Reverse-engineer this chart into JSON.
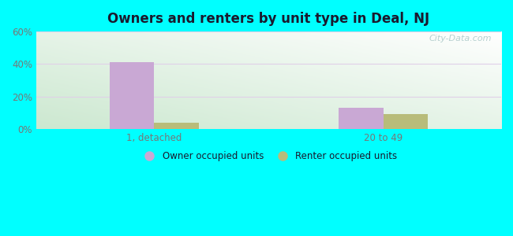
{
  "title": "Owners and renters by unit type in Deal, NJ",
  "categories": [
    "1, detached",
    "20 to 49"
  ],
  "owner_values": [
    41,
    13
  ],
  "renter_values": [
    4,
    9
  ],
  "owner_color": "#c9a8d4",
  "renter_color": "#b8bc7a",
  "ylim": [
    0,
    60
  ],
  "yticks": [
    0,
    20,
    40,
    60
  ],
  "ytick_labels": [
    "0%",
    "20%",
    "40%",
    "60%"
  ],
  "bar_width": 0.32,
  "group_positions": [
    0.85,
    2.5
  ],
  "title_fontsize": 12,
  "legend_label_owner": "Owner occupied units",
  "legend_label_renter": "Renter occupied units",
  "watermark": "City-Data.com",
  "grid_color": "#e0d0e8",
  "tick_label_color": "#777777",
  "bg_gradient_colors": [
    "#cce8d0",
    "#e8f8f0",
    "#f0faf8"
  ],
  "outer_bg": "#00ffff"
}
